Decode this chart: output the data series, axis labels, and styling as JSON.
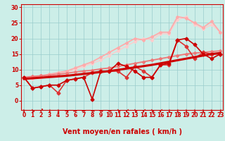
{
  "bg_color": "#cceee8",
  "grid_color": "#99cccc",
  "xlabel": "Vent moyen/en rafales ( km/h )",
  "xlabel_color": "#cc0000",
  "xlabel_fontsize": 7,
  "xticks": [
    0,
    1,
    2,
    3,
    4,
    5,
    6,
    7,
    8,
    9,
    10,
    11,
    12,
    13,
    14,
    15,
    16,
    17,
    18,
    19,
    20,
    21,
    22,
    23
  ],
  "yticks": [
    0,
    5,
    10,
    15,
    20,
    25,
    30
  ],
  "ylim": [
    -3,
    31
  ],
  "xlim": [
    -0.3,
    23.3
  ],
  "lines": [
    {
      "comment": "dark red jagged line (most volatile, going to ~0 at x=8)",
      "x": [
        0,
        1,
        2,
        3,
        4,
        5,
        6,
        7,
        8,
        9,
        10,
        11,
        12,
        13,
        14,
        15,
        16,
        17,
        18,
        19,
        20,
        21,
        22,
        23
      ],
      "y": [
        7.5,
        4,
        4.5,
        5,
        5,
        6.5,
        7,
        7.5,
        0.5,
        9.5,
        9.5,
        12,
        11,
        9.5,
        7.5,
        7.5,
        11.5,
        12,
        19.5,
        20,
        18,
        15,
        13.5,
        15
      ],
      "color": "#cc0000",
      "lw": 1.2,
      "marker": "D",
      "ms": 2.5,
      "zorder": 10
    },
    {
      "comment": "medium red jagged line",
      "x": [
        0,
        1,
        2,
        3,
        4,
        5,
        6,
        7,
        8,
        9,
        10,
        11,
        12,
        13,
        14,
        15,
        16,
        17,
        18,
        19,
        20,
        21,
        22,
        23
      ],
      "y": [
        7.5,
        4,
        4.5,
        5,
        2.5,
        6.5,
        7,
        7.5,
        9,
        9.5,
        9.5,
        9.5,
        7.5,
        11,
        9.5,
        7.5,
        11.5,
        11.5,
        19.5,
        17.5,
        13.5,
        15.5,
        15,
        15
      ],
      "color": "#dd3333",
      "lw": 1.2,
      "marker": "D",
      "ms": 2.5,
      "zorder": 9
    },
    {
      "comment": "bold dark red straight line - mean wind",
      "x": [
        0,
        1,
        2,
        3,
        4,
        5,
        6,
        7,
        8,
        9,
        10,
        11,
        12,
        13,
        14,
        15,
        16,
        17,
        18,
        19,
        20,
        21,
        22,
        23
      ],
      "y": [
        7.0,
        7.2,
        7.4,
        7.6,
        7.8,
        8.0,
        8.3,
        8.6,
        8.9,
        9.2,
        9.5,
        9.9,
        10.3,
        10.7,
        11.1,
        11.5,
        12.0,
        12.5,
        13.0,
        13.5,
        14.0,
        14.5,
        15.0,
        15.3
      ],
      "color": "#cc0000",
      "lw": 2.2,
      "marker": null,
      "ms": 0,
      "zorder": 12
    },
    {
      "comment": "medium pink steady rising line",
      "x": [
        0,
        1,
        2,
        3,
        4,
        5,
        6,
        7,
        8,
        9,
        10,
        11,
        12,
        13,
        14,
        15,
        16,
        17,
        18,
        19,
        20,
        21,
        22,
        23
      ],
      "y": [
        7.5,
        7.8,
        8.0,
        8.2,
        8.5,
        8.8,
        9.2,
        9.5,
        9.8,
        10.2,
        10.5,
        11.0,
        11.5,
        12.0,
        12.5,
        13.0,
        13.5,
        14.0,
        14.5,
        15.0,
        15.3,
        15.5,
        15.8,
        16.0
      ],
      "color": "#ee7777",
      "lw": 1.3,
      "marker": "D",
      "ms": 2.0,
      "zorder": 8
    },
    {
      "comment": "light pink upper line with peak ~27 at x=19",
      "x": [
        0,
        1,
        2,
        3,
        4,
        5,
        6,
        7,
        8,
        9,
        10,
        11,
        12,
        13,
        14,
        15,
        16,
        17,
        18,
        19,
        20,
        21,
        22,
        23
      ],
      "y": [
        7.5,
        7.5,
        8.0,
        8.5,
        9.0,
        9.5,
        10.5,
        11.5,
        12.5,
        14.0,
        15.5,
        17.0,
        18.5,
        20.0,
        19.5,
        20.5,
        22.0,
        22.0,
        27.0,
        26.5,
        25.0,
        23.5,
        25.5,
        22.0
      ],
      "color": "#ffaaaa",
      "lw": 1.3,
      "marker": "D",
      "ms": 2.0,
      "zorder": 6
    },
    {
      "comment": "very light pink top line with peak ~27 at x=19-20",
      "x": [
        0,
        1,
        2,
        3,
        4,
        5,
        6,
        7,
        8,
        9,
        10,
        11,
        12,
        13,
        14,
        15,
        16,
        17,
        18,
        19,
        20,
        21,
        22,
        23
      ],
      "y": [
        7.5,
        7.0,
        7.5,
        8.0,
        8.5,
        9.0,
        10.0,
        11.0,
        12.0,
        13.0,
        14.5,
        16.0,
        17.5,
        19.0,
        20.0,
        19.5,
        21.5,
        21.5,
        26.0,
        27.0,
        24.5,
        23.0,
        24.5,
        22.0
      ],
      "color": "#ffcccc",
      "lw": 1.0,
      "marker": "D",
      "ms": 2.0,
      "zorder": 5
    }
  ],
  "wind_arrows": [
    "↓",
    "↘",
    "↗",
    "↓",
    "↓",
    "→",
    "←",
    "←",
    "→",
    "→",
    "→",
    "↘",
    "↙",
    "↘",
    "↙",
    "↘",
    "↙",
    "↓",
    "↓",
    "↓",
    "↓",
    "↓",
    "↓",
    "↓"
  ],
  "tick_color": "#cc0000",
  "tick_fontsize": 5.5
}
